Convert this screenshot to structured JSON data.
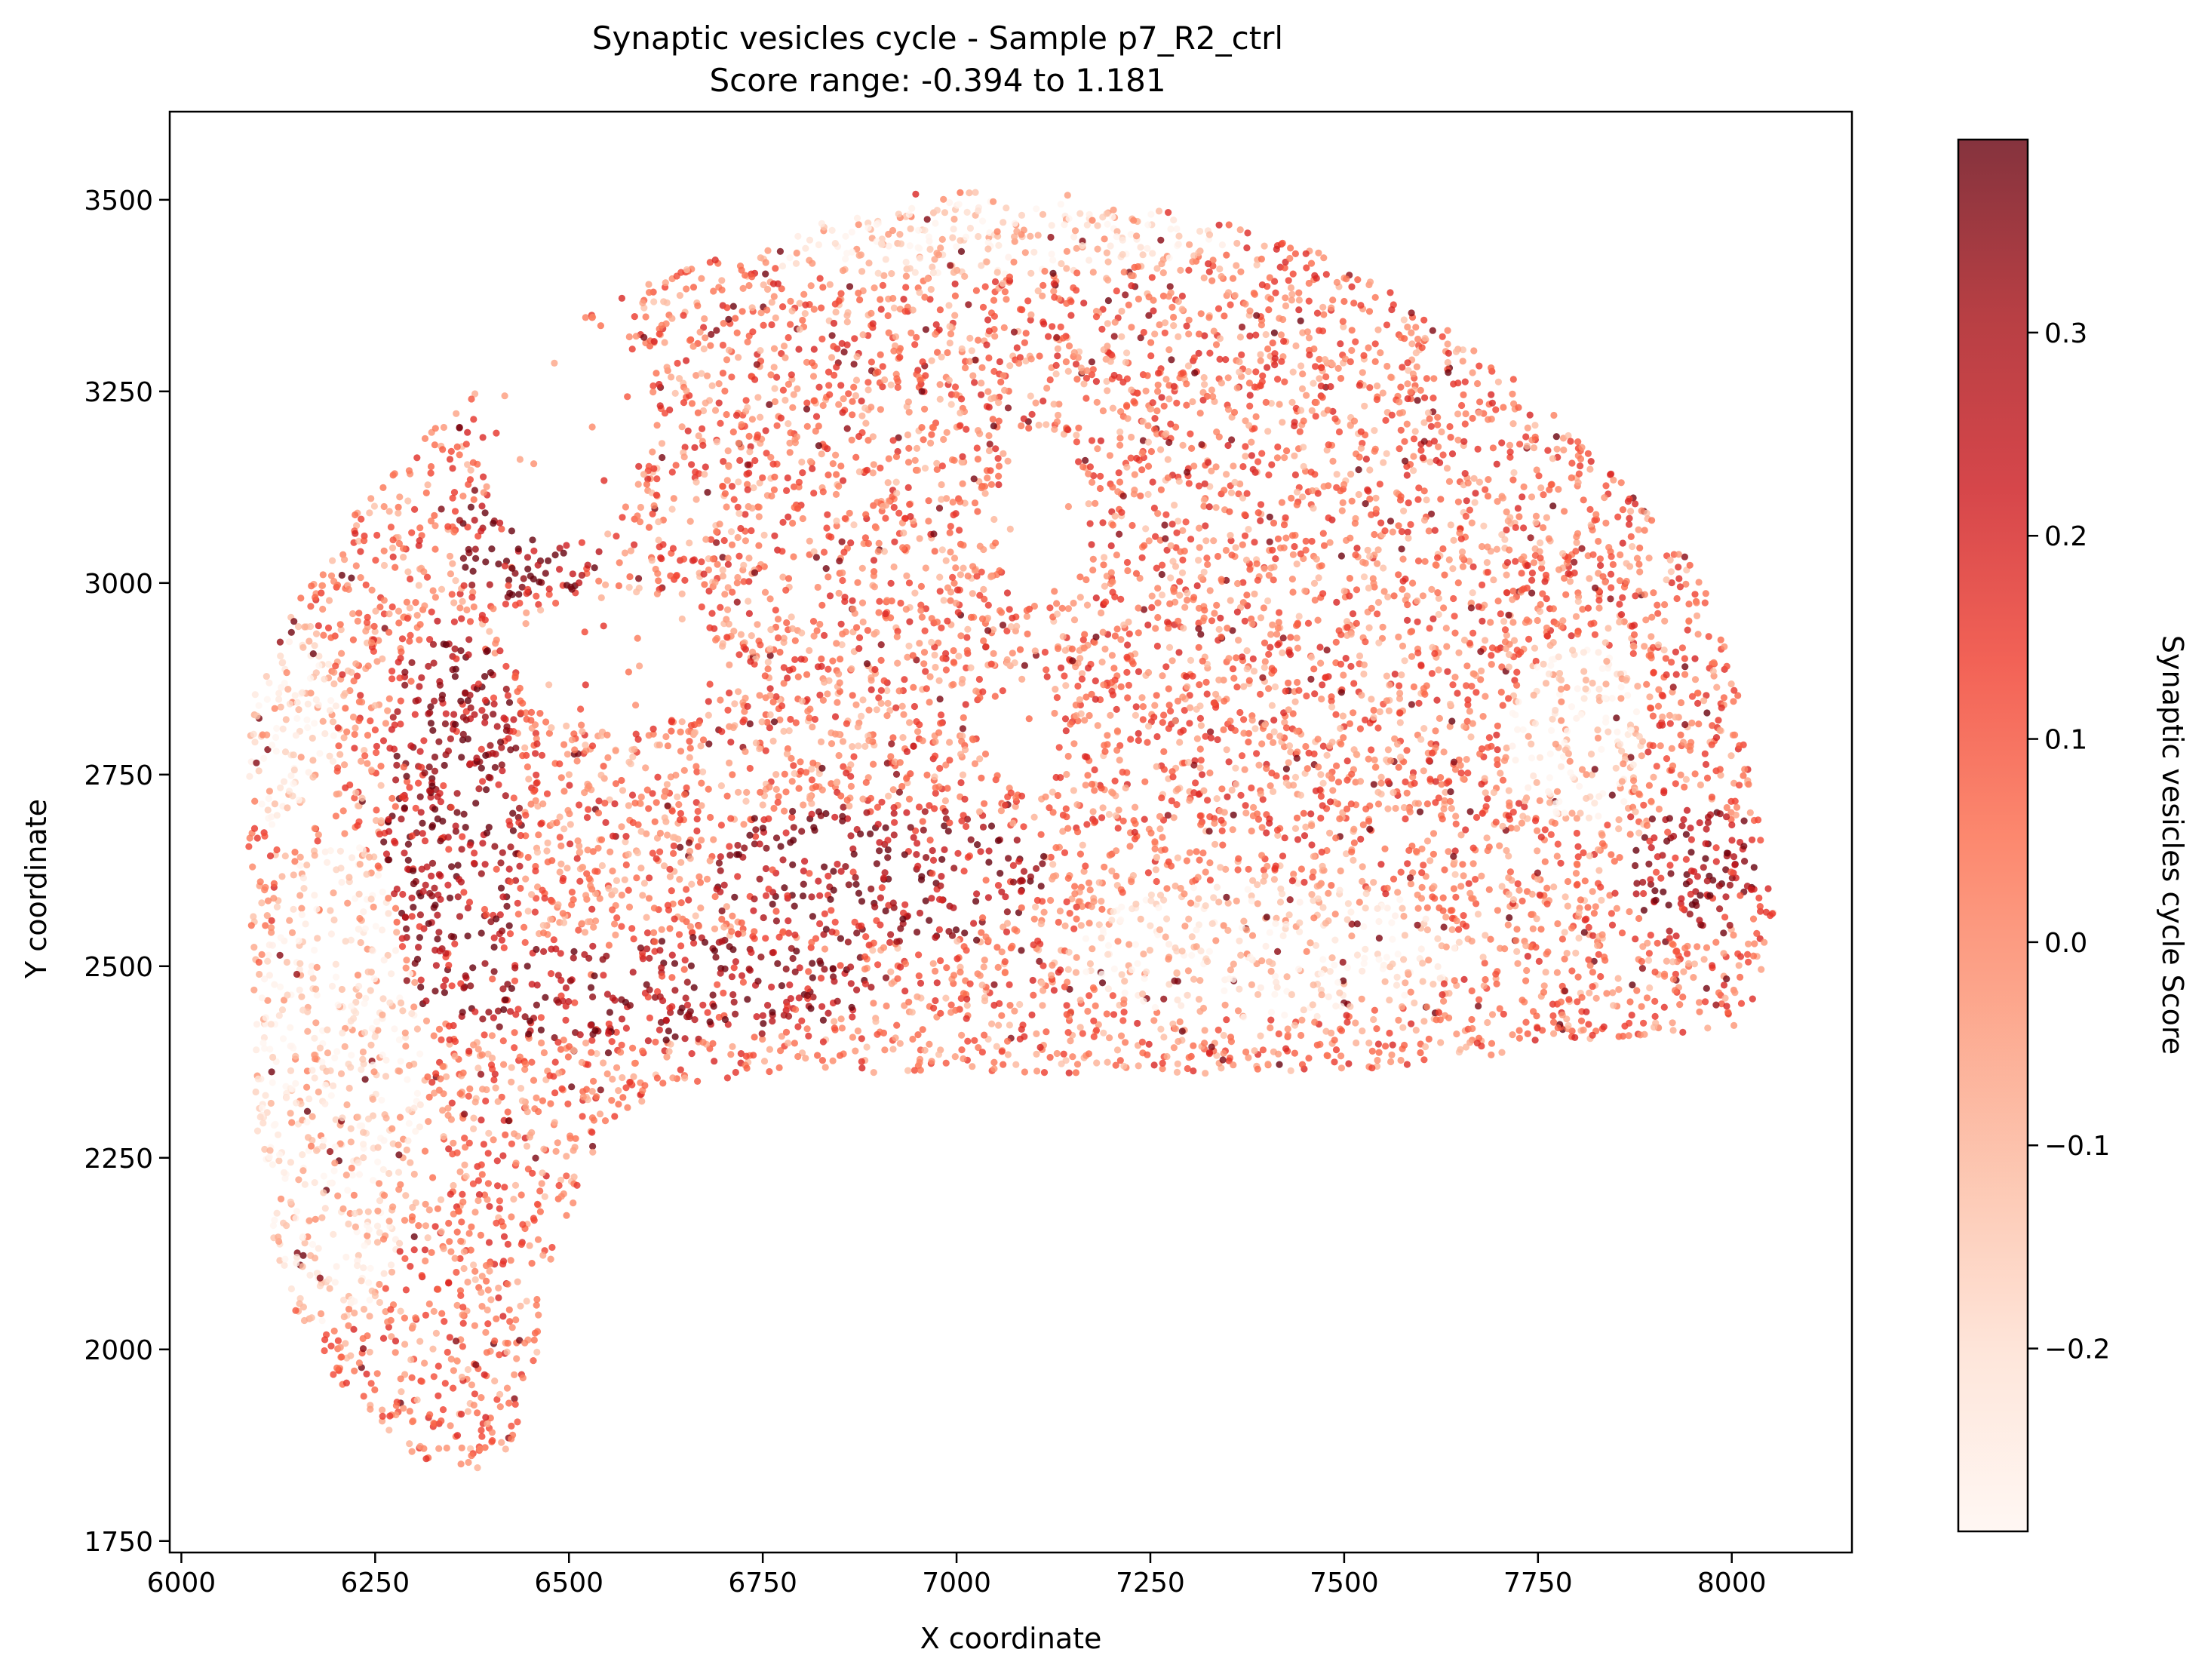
{
  "chart_data": {
    "type": "scatter",
    "title": "Synaptic vesicles cycle - Sample p7_R2_ctrl",
    "subtitle": "Score range: -0.394 to 1.181",
    "xlabel": "X coordinate",
    "ylabel": "Y coordinate",
    "xlim": [
      5985,
      8155
    ],
    "ylim": [
      1735,
      3615
    ],
    "x_ticks": [
      6000,
      6250,
      6500,
      6750,
      7000,
      7250,
      7500,
      7750,
      8000
    ],
    "y_ticks": [
      1750,
      2000,
      2250,
      2500,
      2750,
      3000,
      3250,
      3500
    ],
    "colorbar": {
      "label": "Synaptic vesicles cycle Score",
      "colormap": "Reds",
      "range": [
        -0.29,
        0.395
      ],
      "ticks": [
        -0.2,
        -0.1,
        0.0,
        0.1,
        0.2,
        0.3
      ],
      "tick_labels": [
        "−0.2",
        "−0.1",
        "0.0",
        "0.1",
        "0.2",
        "0.3"
      ]
    },
    "marker_alpha": 0.8,
    "tissue_outline_points": [
      [
        6085,
        2720
      ],
      [
        6090,
        2850
      ],
      [
        6140,
        2960
      ],
      [
        6200,
        3060
      ],
      [
        6280,
        3160
      ],
      [
        6370,
        3240
      ],
      [
        6470,
        3320
      ],
      [
        6600,
        3390
      ],
      [
        6760,
        3450
      ],
      [
        6950,
        3510
      ],
      [
        7130,
        3510
      ],
      [
        7320,
        3480
      ],
      [
        7480,
        3430
      ],
      [
        7620,
        3340
      ],
      [
        7740,
        3250
      ],
      [
        7850,
        3140
      ],
      [
        7960,
        3010
      ],
      [
        8010,
        2870
      ],
      [
        8030,
        2720
      ],
      [
        8055,
        2560
      ],
      [
        8020,
        2420
      ],
      [
        7800,
        2400
      ],
      [
        7600,
        2370
      ],
      [
        7400,
        2360
      ],
      [
        7200,
        2360
      ],
      [
        6950,
        2360
      ],
      [
        6750,
        2360
      ],
      [
        6620,
        2340
      ],
      [
        6540,
        2280
      ],
      [
        6490,
        2150
      ],
      [
        6460,
        2000
      ],
      [
        6430,
        1880
      ],
      [
        6390,
        1840
      ],
      [
        6300,
        1860
      ],
      [
        6200,
        1960
      ],
      [
        6130,
        2080
      ],
      [
        6100,
        2250
      ],
      [
        6090,
        2450
      ]
    ],
    "cavity_regions": [
      {
        "center": [
          6490,
          3200
        ],
        "rx": 110,
        "ry": 150
      },
      {
        "center": [
          7090,
          2800
        ],
        "rx": 55,
        "ry": 70
      },
      {
        "center": [
          7110,
          3080
        ],
        "rx": 60,
        "ry": 110
      },
      {
        "center": [
          6560,
          2900
        ],
        "rx": 130,
        "ry": 90
      }
    ],
    "high_score_bands": [
      {
        "center": [
          6350,
          2700
        ],
        "rx": 90,
        "ry": 260
      },
      {
        "center": [
          6600,
          2470
        ],
        "rx": 300,
        "ry": 70
      },
      {
        "center": [
          6900,
          2620
        ],
        "rx": 220,
        "ry": 90
      },
      {
        "center": [
          6450,
          3050
        ],
        "rx": 100,
        "ry": 80
      },
      {
        "center": [
          7950,
          2620
        ],
        "rx": 80,
        "ry": 90
      }
    ],
    "low_score_bands": [
      {
        "center": [
          6200,
          2350
        ],
        "rx": 110,
        "ry": 320
      },
      {
        "center": [
          6140,
          2820
        ],
        "rx": 60,
        "ry": 150
      },
      {
        "center": [
          7000,
          3450
        ],
        "rx": 350,
        "ry": 50
      },
      {
        "center": [
          7400,
          2520
        ],
        "rx": 260,
        "ry": 90
      },
      {
        "center": [
          7800,
          2800
        ],
        "rx": 90,
        "ry": 120
      }
    ]
  }
}
